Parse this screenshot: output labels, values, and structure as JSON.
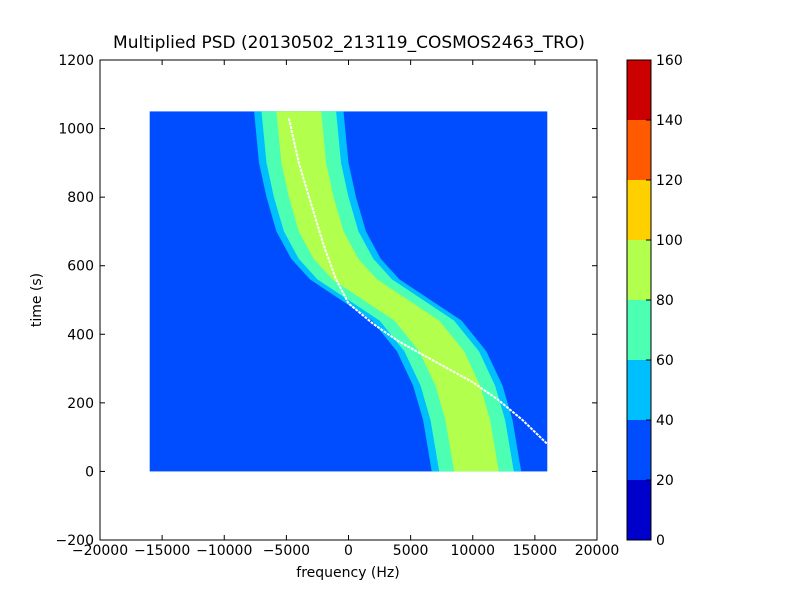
{
  "chart_data": {
    "type": "heatmap",
    "title": "Multiplied PSD (20130502_213119_COSMOS2463_TRO)",
    "xlabel": "frequency (Hz)",
    "ylabel": "time (s)",
    "xlim": [
      -20000,
      20000
    ],
    "ylim": [
      -200,
      1200
    ],
    "xticks": [
      -20000,
      -15000,
      -10000,
      -5000,
      0,
      5000,
      10000,
      15000,
      20000
    ],
    "yticks": [
      -200,
      0,
      200,
      400,
      600,
      800,
      1000,
      1200
    ],
    "data_extent": {
      "freq": [
        -16000,
        16000
      ],
      "time": [
        0,
        1050
      ]
    },
    "background_value": 30,
    "main_trace": {
      "center": [
        [
          -4000,
          1050
        ],
        [
          -3600,
          900
        ],
        [
          -3000,
          800
        ],
        [
          -2200,
          700
        ],
        [
          -1000,
          620
        ],
        [
          500,
          560
        ],
        [
          3000,
          500
        ],
        [
          5500,
          440
        ],
        [
          7500,
          350
        ],
        [
          8800,
          250
        ],
        [
          9600,
          150
        ],
        [
          10300,
          0
        ]
      ],
      "bands": [
        {
          "halfwidth": 3600,
          "value": 50
        },
        {
          "halfwidth": 3000,
          "value": 70
        },
        {
          "halfwidth": 1800,
          "value": 85
        }
      ]
    },
    "white_trace": [
      [
        -4800,
        1030
      ],
      [
        -4000,
        900
      ],
      [
        -3000,
        780
      ],
      [
        -2000,
        660
      ],
      [
        -1000,
        560
      ],
      [
        0,
        490
      ],
      [
        2000,
        430
      ],
      [
        4000,
        380
      ],
      [
        6000,
        340
      ],
      [
        8000,
        300
      ],
      [
        10000,
        260
      ],
      [
        12000,
        210
      ],
      [
        14000,
        150
      ],
      [
        16000,
        80
      ]
    ],
    "colorbar": {
      "min": 0,
      "max": 160,
      "ticks": [
        0,
        20,
        40,
        60,
        80,
        100,
        120,
        140,
        160
      ],
      "colors": [
        "#0000cd",
        "#004cff",
        "#00bfff",
        "#4dffb2",
        "#b2ff4d",
        "#ffd000",
        "#ff5a00",
        "#cd0000"
      ]
    }
  }
}
